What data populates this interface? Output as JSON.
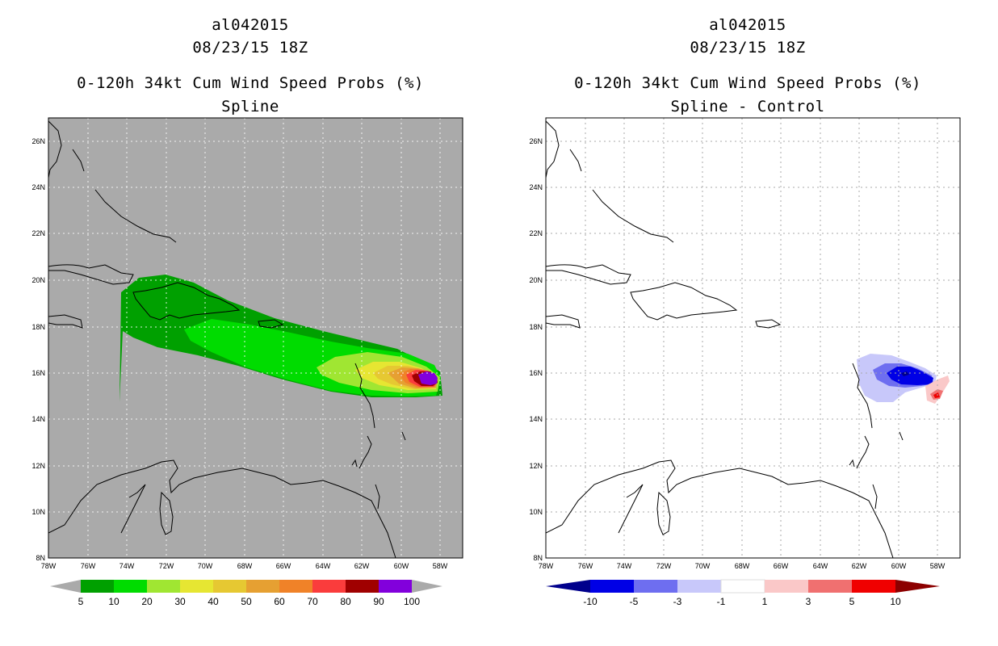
{
  "left": {
    "title_line1": "al042015",
    "title_line2": "08/23/15 18Z",
    "title_line3": "0-120h 34kt Cum Wind Speed Probs (%)",
    "title_line4": "Spline",
    "background": "#aaaaaa",
    "colorbar": {
      "colors": [
        "#00a000",
        "#00dc00",
        "#a0e632",
        "#e6e632",
        "#e6c832",
        "#e6a032",
        "#f08228",
        "#fa3c3c",
        "#a00000",
        "#8200dc"
      ],
      "labels": [
        "5",
        "10",
        "20",
        "30",
        "40",
        "50",
        "60",
        "70",
        "80",
        "90",
        "100"
      ],
      "ends": "#aaaaaa"
    }
  },
  "right": {
    "title_line1": "al042015",
    "title_line2": "08/23/15 18Z",
    "title_line3": "0-120h 34kt Cum Wind Speed Probs (%)",
    "title_line4": "Spline - Control",
    "background": "#ffffff",
    "colorbar": {
      "colors": [
        "#0000e6",
        "#6e6ef0",
        "#c8c8fa",
        "#ffffff",
        "#fac8c8",
        "#f07070",
        "#f00000"
      ],
      "labels": [
        "-10",
        "-5",
        "-3",
        "-1",
        "1",
        "3",
        "5",
        "10"
      ],
      "end_low": "#00008c",
      "end_high": "#8c0000"
    }
  },
  "axes": {
    "lat_labels": [
      "26N",
      "24N",
      "22N",
      "20N",
      "18N",
      "16N",
      "14N",
      "12N",
      "10N",
      "8N"
    ],
    "lon_labels": [
      "78W",
      "76W",
      "74W",
      "72W",
      "70W",
      "68W",
      "66W",
      "64W",
      "62W",
      "60W",
      "58W"
    ]
  }
}
